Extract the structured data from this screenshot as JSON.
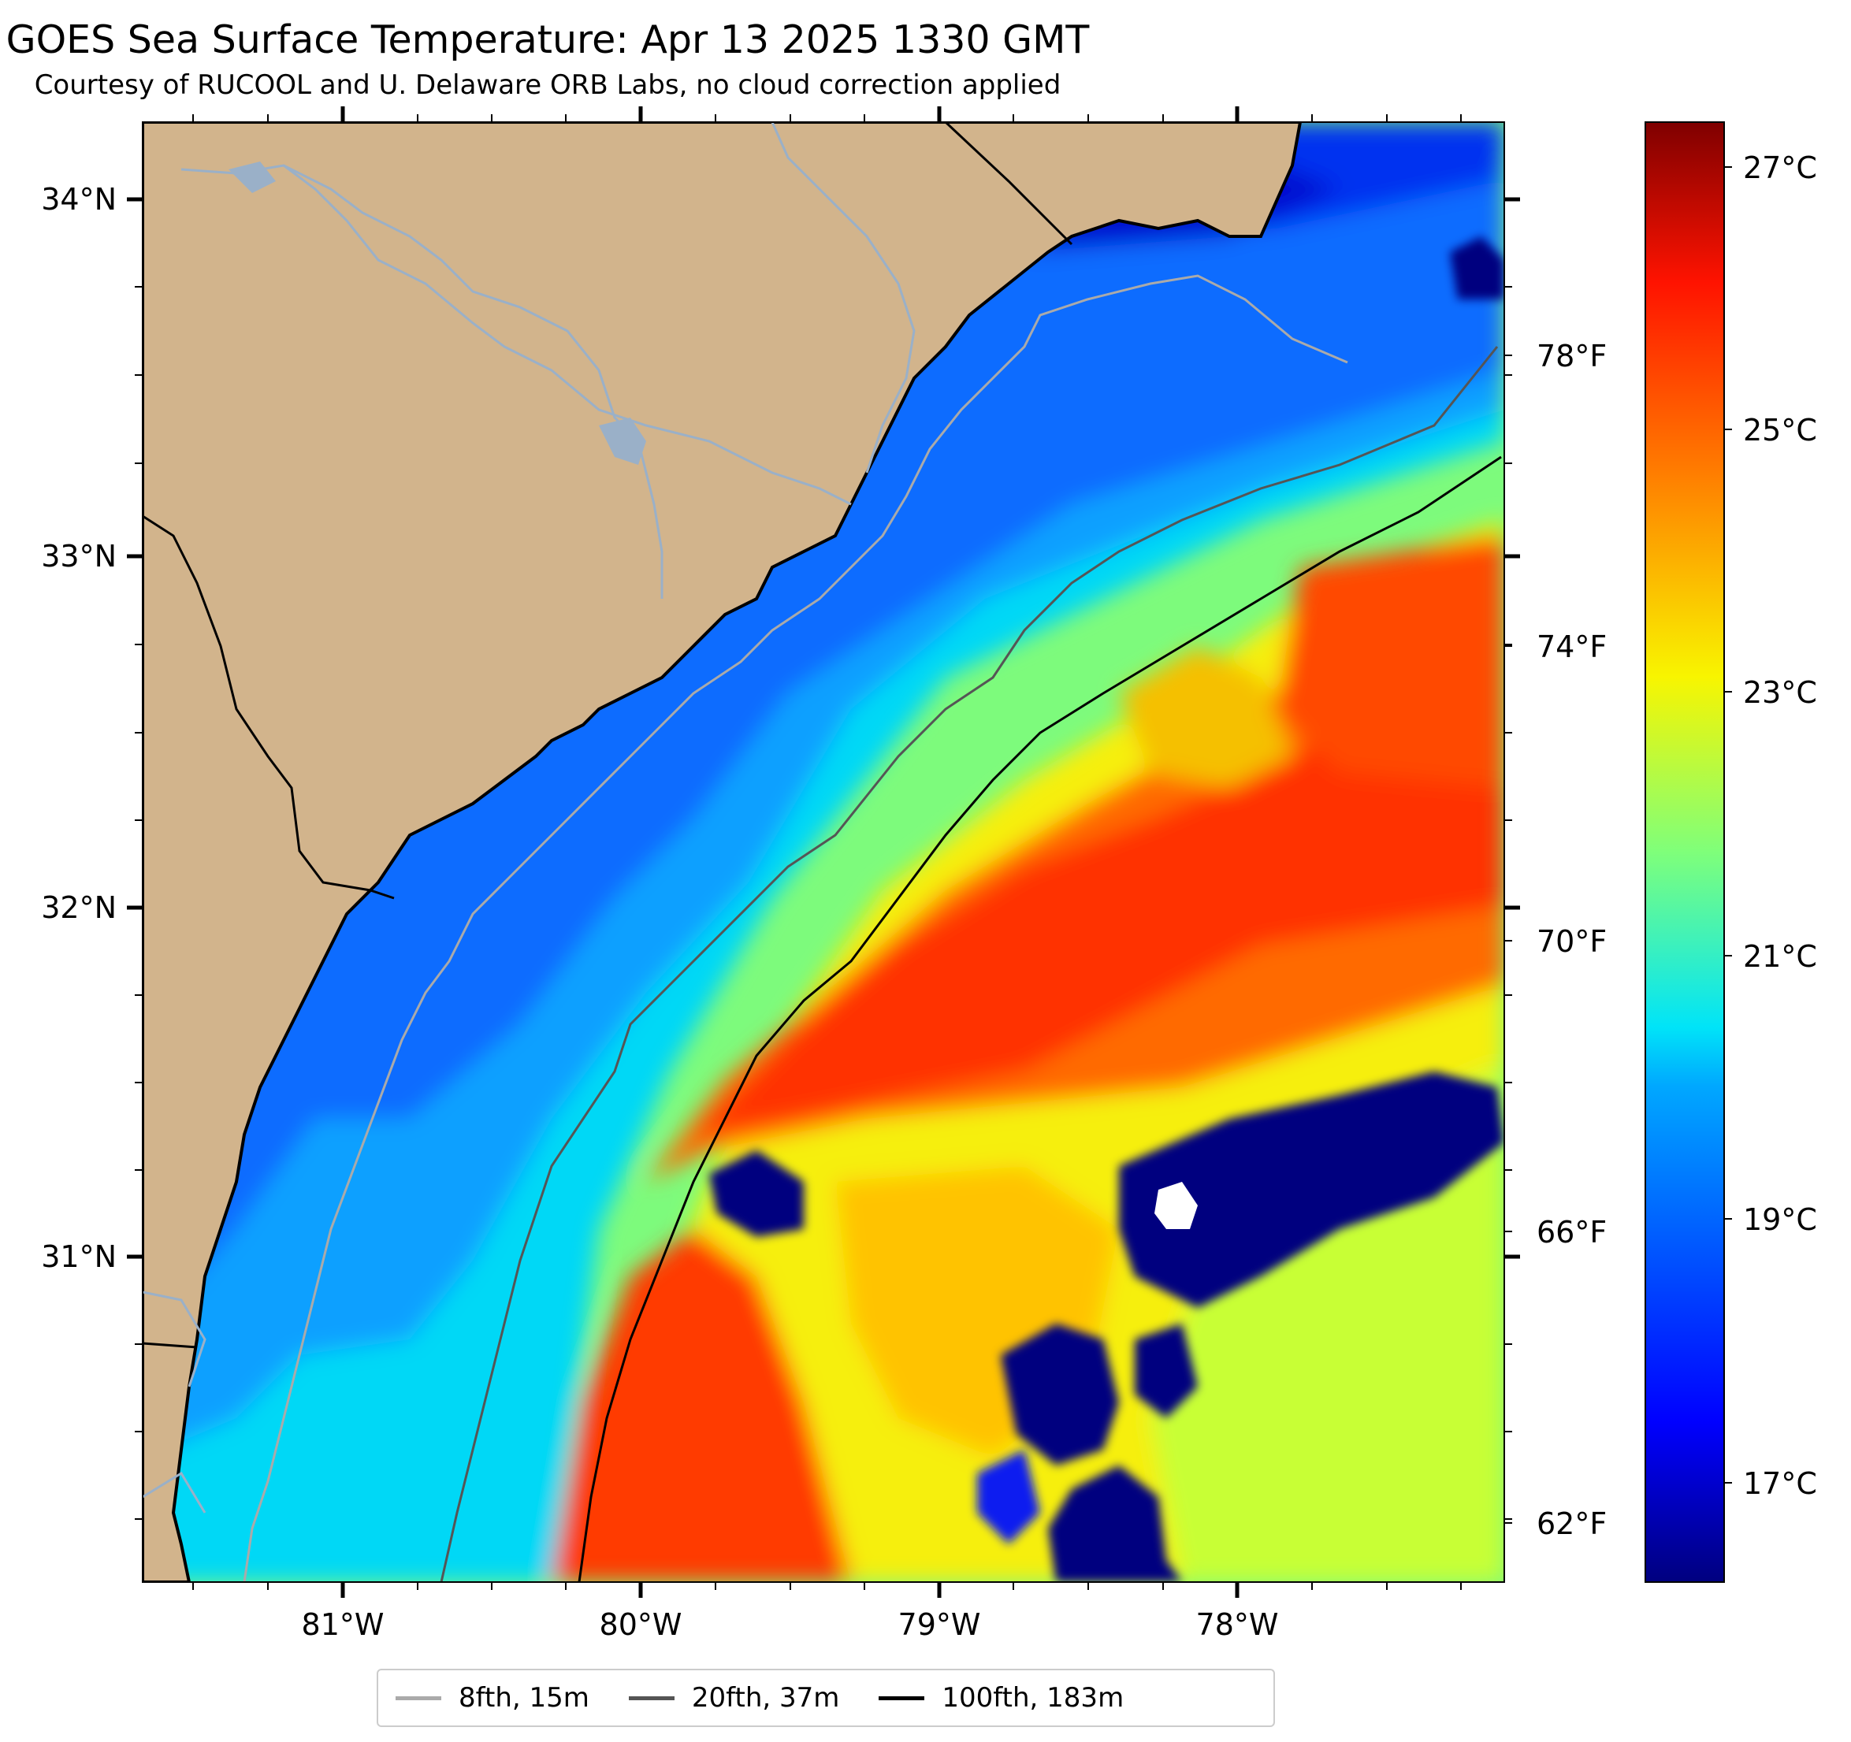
{
  "header": {
    "title": "GOES Sea Surface Temperature: Apr 13 2025 1330 GMT",
    "subtitle": "Courtesy of RUCOOL and U. Delaware ORB Labs, no cloud correction applied"
  },
  "map": {
    "lat_labels": [
      "34°N",
      "33°N",
      "32°N",
      "31°N"
    ],
    "lon_labels": [
      "81°W",
      "80°W",
      "79°W",
      "78°W"
    ],
    "lat_range": [
      30.1,
      34.2
    ],
    "lon_range": [
      -81.7,
      -77.1
    ],
    "land_color": "#d2b48c",
    "river_color": "#9ab0c8"
  },
  "colorbar": {
    "celsius_labels": [
      "27°C",
      "25°C",
      "23°C",
      "21°C",
      "19°C",
      "17°C"
    ],
    "fahrenheit_labels": [
      "78°F",
      "74°F",
      "70°F",
      "66°F",
      "62°F"
    ],
    "colormap": "jet"
  },
  "legend": {
    "items": [
      {
        "label": "8fth, 15m",
        "color": "#aaaaaa"
      },
      {
        "label": "20fth, 37m",
        "color": "#555555"
      },
      {
        "label": "100fth, 183m",
        "color": "#000000"
      }
    ]
  }
}
